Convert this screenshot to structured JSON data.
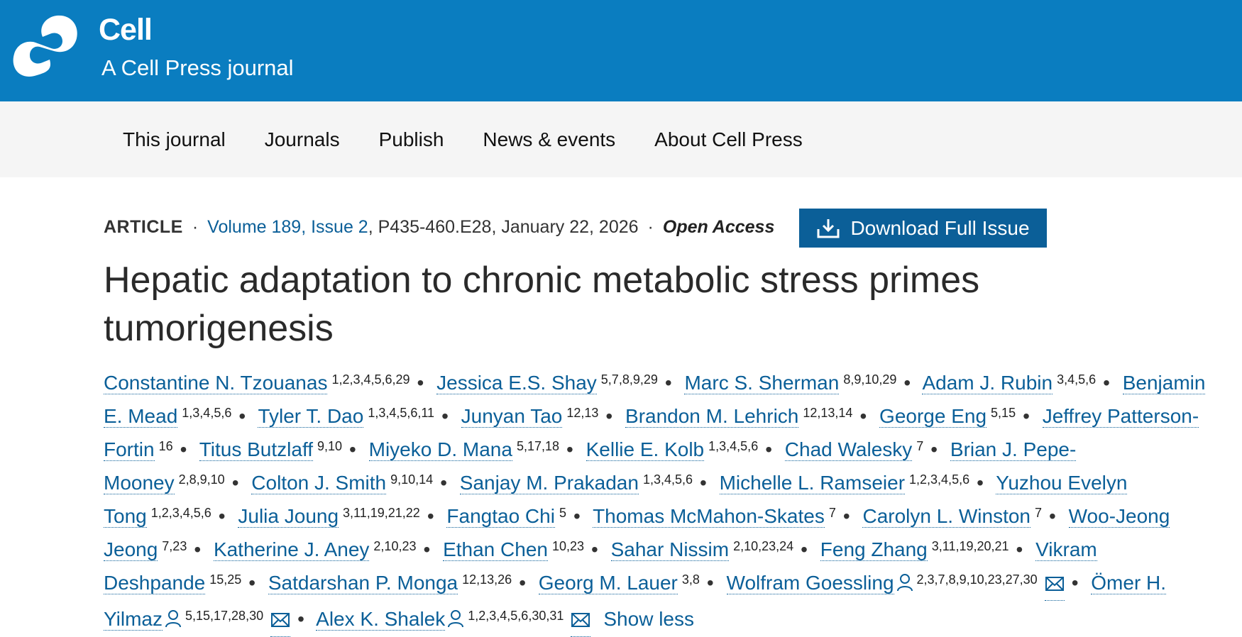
{
  "header": {
    "brand": "Cell",
    "tagline": "A Cell Press journal",
    "logo_icon": "cell-press-logo"
  },
  "nav": {
    "items": [
      "This journal",
      "Journals",
      "Publish",
      "News & events",
      "About Cell Press"
    ]
  },
  "article": {
    "type": "ARTICLE",
    "volume_issue": "Volume 189, Issue 2",
    "pages_date": ", P435-460.E28, January 22, 2026",
    "open_access": "Open Access",
    "download_label": "Download Full Issue",
    "title": "Hepatic adaptation to chronic metabolic stress primes tumorigenesis",
    "show_less": "Show less",
    "authors": [
      {
        "name": "Constantine N. Tzouanas",
        "aff": "1,2,3,4,5,6,29"
      },
      {
        "name": "Jessica E.S. Shay",
        "aff": "5,7,8,9,29"
      },
      {
        "name": "Marc S. Sherman",
        "aff": "8,9,10,29"
      },
      {
        "name": "Adam J. Rubin",
        "aff": "3,4,5,6"
      },
      {
        "name": "Benjamin E. Mead",
        "aff": "1,3,4,5,6"
      },
      {
        "name": "Tyler T. Dao",
        "aff": "1,3,4,5,6,11"
      },
      {
        "name": "Junyan Tao",
        "aff": "12,13"
      },
      {
        "name": "Brandon M. Lehrich",
        "aff": "12,13,14"
      },
      {
        "name": "George Eng",
        "aff": "5,15"
      },
      {
        "name": "Jeffrey Patterson-Fortin",
        "aff": "16"
      },
      {
        "name": "Titus Butzlaff",
        "aff": "9,10"
      },
      {
        "name": "Miyeko D. Mana",
        "aff": "5,17,18"
      },
      {
        "name": "Kellie E. Kolb",
        "aff": "1,3,4,5,6"
      },
      {
        "name": "Chad Walesky",
        "aff": "7"
      },
      {
        "name": "Brian J. Pepe-Mooney",
        "aff": "2,8,9,10"
      },
      {
        "name": "Colton J. Smith",
        "aff": "9,10,14"
      },
      {
        "name": "Sanjay M. Prakadan",
        "aff": "1,3,4,5,6"
      },
      {
        "name": "Michelle L. Ramseier",
        "aff": "1,2,3,4,5,6"
      },
      {
        "name": "Yuzhou Evelyn Tong",
        "aff": "1,2,3,4,5,6"
      },
      {
        "name": "Julia Joung",
        "aff": "3,11,19,21,22"
      },
      {
        "name": "Fangtao Chi",
        "aff": "5"
      },
      {
        "name": "Thomas McMahon-Skates",
        "aff": "7"
      },
      {
        "name": "Carolyn L. Winston",
        "aff": "7"
      },
      {
        "name": "Woo-Jeong Jeong",
        "aff": "7,23"
      },
      {
        "name": "Katherine J. Aney",
        "aff": "2,10,23"
      },
      {
        "name": "Ethan Chen",
        "aff": "10,23"
      },
      {
        "name": "Sahar Nissim",
        "aff": "2,10,23,24"
      },
      {
        "name": "Feng Zhang",
        "aff": "3,11,19,20,21"
      },
      {
        "name": "Vikram Deshpande",
        "aff": "15,25"
      },
      {
        "name": "Satdarshan P. Monga",
        "aff": "12,13,26"
      },
      {
        "name": "Georg M. Lauer",
        "aff": "3,8"
      },
      {
        "name": "Wolfram Goessling",
        "aff": "2,3,7,8,9,10,23,27,30",
        "corresponding": true
      },
      {
        "name": "Ömer H. Yilmaz",
        "aff": "5,15,17,28,30",
        "corresponding": true
      },
      {
        "name": "Alex K. Shalek",
        "aff": "1,2,3,4,5,6,30,31",
        "corresponding": true
      }
    ]
  }
}
